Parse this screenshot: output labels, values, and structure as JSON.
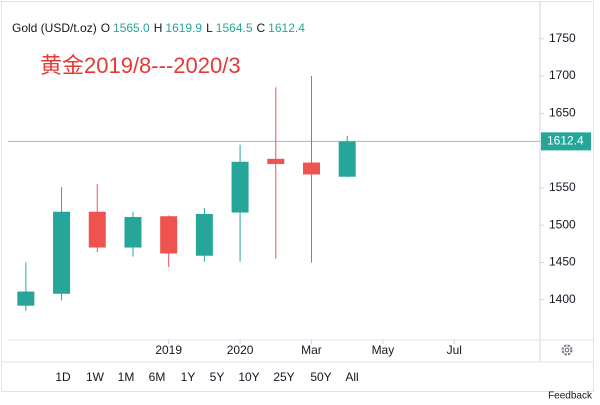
{
  "chart_data": {
    "type": "candlestick",
    "header": {
      "symbol": "Gold (USD/t.oz)",
      "fields": [
        {
          "label": "O",
          "value": "1565.0"
        },
        {
          "label": "H",
          "value": "1619.9"
        },
        {
          "label": "L",
          "value": "1564.5"
        },
        {
          "label": "C",
          "value": "1612.4"
        }
      ]
    },
    "annotation": "黄金2019/8---2020/3",
    "categories": [
      null,
      null,
      null,
      null,
      null,
      null,
      null,
      null,
      null,
      null
    ],
    "open": [
      1392,
      1408,
      1518,
      1470,
      1512,
      1459,
      1517,
      1589,
      1584,
      1565
    ],
    "high": [
      1450,
      1551,
      1555,
      1518,
      1513,
      1523,
      1608,
      1685,
      1700,
      1619.9
    ],
    "low": [
      1385,
      1399,
      1464,
      1458,
      1444,
      1451,
      1451,
      1455,
      1450,
      1564.5
    ],
    "close": [
      1411,
      1518,
      1470,
      1511,
      1462,
      1515,
      1585,
      1582,
      1568,
      1612.4
    ],
    "up_color": "#26a69a",
    "down_color": "#ef5350",
    "xlim": [
      -0.5,
      14.4
    ],
    "xticks": [
      {
        "value": 4,
        "label": "2019"
      },
      {
        "value": 6,
        "label": "2020"
      },
      {
        "value": 8,
        "label": "Mar"
      },
      {
        "value": 10,
        "label": "May"
      },
      {
        "value": 12,
        "label": "Jul"
      }
    ],
    "ylim": [
      1346,
      1802
    ],
    "yticks": [
      1400,
      1450,
      1500,
      1550,
      1650,
      1700,
      1750
    ],
    "last_price": 1612.4,
    "grid": false
  },
  "toolbar": {
    "ranges": [
      "1D",
      "1W",
      "1M",
      "6M",
      "1Y",
      "5Y",
      "10Y",
      "25Y",
      "50Y",
      "All"
    ],
    "feedback": "Feedback"
  }
}
